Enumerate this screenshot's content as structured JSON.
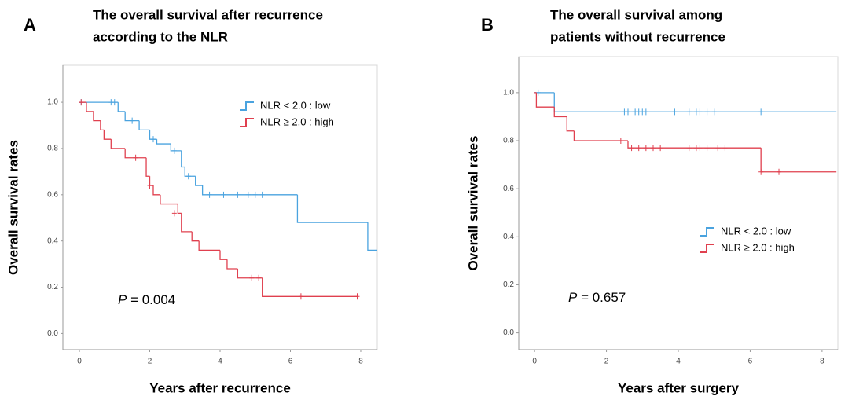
{
  "chart_data": [
    {
      "type": "step",
      "label": "A",
      "title": [
        "The overall survival after recurrence",
        "according to the NLR"
      ],
      "ylabel": "Overall survival rates",
      "xlabel": "Years after recurrence",
      "annotation_italic": "P",
      "annotation": " = 0.004",
      "legend": "upper right",
      "xlim": [
        -0.47,
        8.47
      ],
      "ylim": [
        -0.07,
        1.16
      ],
      "xticks": [
        0,
        2,
        4,
        6,
        8
      ],
      "yticks": [
        {
          "value": 0,
          "label": "0.0"
        },
        0.2,
        0.4,
        0.6,
        0.8,
        {
          "value": 1,
          "label": "1.0"
        }
      ],
      "series": [
        {
          "name": "NLR < 2.0 : low",
          "color": "#4aa3df",
          "x": [
            0,
            1.1,
            1.3,
            1.7,
            2.0,
            2.2,
            2.6,
            2.9,
            3.0,
            3.3,
            3.5,
            6.2,
            8.2,
            8.47
          ],
          "values": [
            1.0,
            0.96,
            0.92,
            0.88,
            0.84,
            0.82,
            0.79,
            0.72,
            0.68,
            0.64,
            0.6,
            0.48,
            0.36,
            0.36
          ],
          "censor_x": [
            0.05,
            0.9,
            1.0,
            1.5,
            2.1,
            2.7,
            3.1,
            3.7,
            4.1,
            4.5,
            4.8,
            5.0,
            5.2
          ],
          "censor_values": [
            1.0,
            1.0,
            1.0,
            0.92,
            0.84,
            0.79,
            0.68,
            0.6,
            0.6,
            0.6,
            0.6,
            0.6,
            0.6
          ]
        },
        {
          "name": "NLR ≥ 2.0 : high",
          "color": "#e0404f",
          "x": [
            0,
            0.2,
            0.4,
            0.6,
            0.7,
            0.9,
            1.3,
            1.9,
            2.0,
            2.1,
            2.3,
            2.8,
            2.9,
            3.2,
            3.4,
            4.0,
            4.2,
            4.5,
            5.2,
            7.9
          ],
          "values": [
            1.0,
            0.96,
            0.92,
            0.88,
            0.84,
            0.8,
            0.76,
            0.68,
            0.64,
            0.6,
            0.56,
            0.52,
            0.44,
            0.4,
            0.36,
            0.32,
            0.28,
            0.24,
            0.16,
            0.16
          ],
          "censor_x": [
            0.05,
            0.1,
            1.6,
            2.0,
            2.7,
            4.9,
            5.1,
            6.3,
            7.9
          ],
          "censor_values": [
            1.0,
            1.0,
            0.76,
            0.64,
            0.52,
            0.24,
            0.24,
            0.16,
            0.16
          ]
        }
      ]
    },
    {
      "type": "step",
      "label": "B",
      "title": [
        "The overall survival among",
        "patients without recurrence"
      ],
      "ylabel": "Overall survival rates",
      "xlabel": "Years after surgery",
      "annotation_italic": "P",
      "annotation": " = 0.657",
      "legend": "lower right",
      "xlim": [
        -0.44,
        8.44
      ],
      "ylim": [
        -0.07,
        1.15
      ],
      "xticks": [
        0,
        2,
        4,
        6,
        8
      ],
      "yticks": [
        {
          "value": 0,
          "label": "0.0"
        },
        0.2,
        0.4,
        0.6,
        0.8,
        {
          "value": 1,
          "label": "1.0"
        }
      ],
      "series": [
        {
          "name": "NLR < 2.0 : low",
          "color": "#4aa3df",
          "x": [
            0,
            0.55,
            8.4
          ],
          "values": [
            1.0,
            0.92,
            0.92
          ],
          "censor_x": [
            0.1,
            2.5,
            2.6,
            2.8,
            2.9,
            3.0,
            3.1,
            3.9,
            4.3,
            4.5,
            4.6,
            4.8,
            5.0,
            6.3
          ],
          "censor_values": [
            1.0,
            0.92,
            0.92,
            0.92,
            0.92,
            0.92,
            0.92,
            0.92,
            0.92,
            0.92,
            0.92,
            0.92,
            0.92,
            0.92
          ]
        },
        {
          "name": "NLR ≥ 2.0 : high",
          "color": "#e0404f",
          "x": [
            0,
            0.05,
            0.55,
            0.9,
            1.1,
            2.6,
            6.3,
            8.4
          ],
          "values": [
            1.0,
            0.94,
            0.9,
            0.84,
            0.8,
            0.77,
            0.67,
            0.67
          ],
          "censor_x": [
            2.4,
            2.7,
            2.9,
            3.1,
            3.3,
            3.5,
            4.3,
            4.5,
            4.6,
            4.8,
            5.1,
            5.3,
            6.3,
            6.8
          ],
          "censor_values": [
            0.8,
            0.77,
            0.77,
            0.77,
            0.77,
            0.77,
            0.77,
            0.77,
            0.77,
            0.77,
            0.77,
            0.77,
            0.67,
            0.67
          ]
        }
      ]
    }
  ]
}
